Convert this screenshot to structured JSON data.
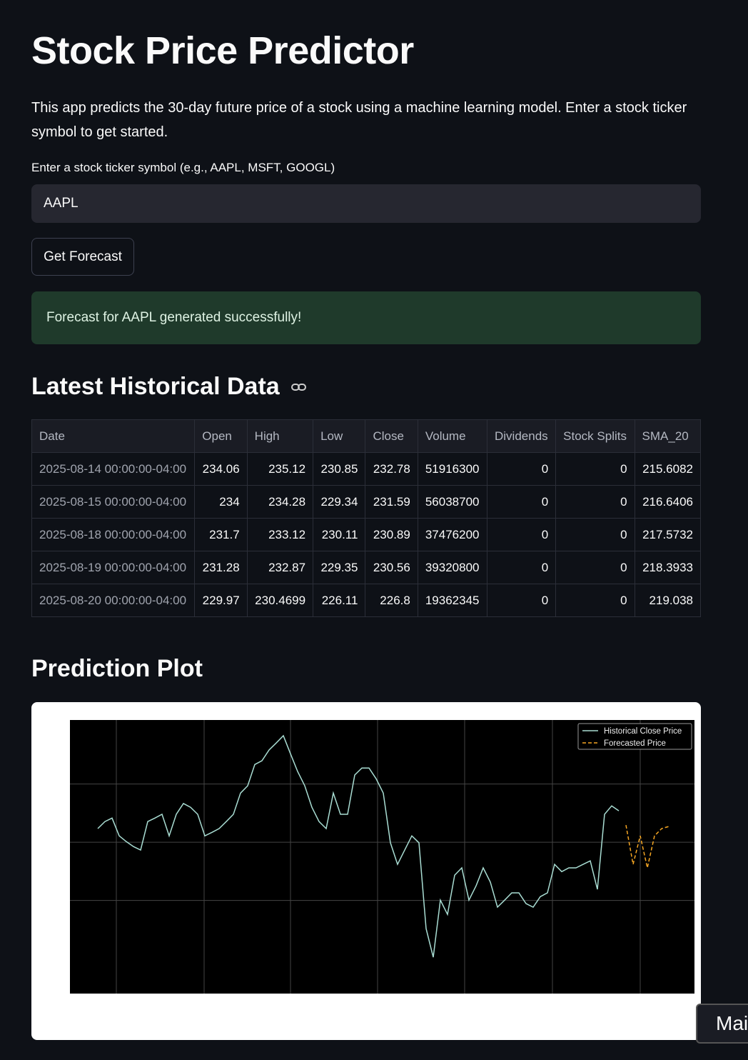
{
  "header": {
    "title": "Stock Price Predictor",
    "description": "This app predicts the 30-day future price of a stock using a machine learning model. Enter a stock ticker symbol to get started."
  },
  "input": {
    "label": "Enter a stock ticker symbol (e.g., AAPL, MSFT, GOOGL)",
    "value": "AAPL"
  },
  "button": {
    "label": "Get Forecast"
  },
  "alert": {
    "text": "Forecast for AAPL generated successfully!"
  },
  "table_section": {
    "title": "Latest Historical Data"
  },
  "table": {
    "columns": [
      "Date",
      "Open",
      "High",
      "Low",
      "Close",
      "Volume",
      "Dividends",
      "Stock Splits",
      "SMA_20"
    ],
    "rows": [
      [
        "2025-08-14 00:00:00-04:00",
        234.06,
        235.12,
        230.85,
        232.78,
        51916300,
        0,
        0,
        215.6082
      ],
      [
        "2025-08-15 00:00:00-04:00",
        234,
        234.28,
        229.34,
        231.59,
        56038700,
        0,
        0,
        216.6406
      ],
      [
        "2025-08-18 00:00:00-04:00",
        231.7,
        233.12,
        230.11,
        230.89,
        37476200,
        0,
        0,
        217.5732
      ],
      [
        "2025-08-19 00:00:00-04:00",
        231.28,
        232.87,
        229.35,
        230.56,
        39320800,
        0,
        0,
        218.3933
      ],
      [
        "2025-08-20 00:00:00-04:00",
        229.97,
        230.4699,
        226.11,
        226.8,
        19362345,
        0,
        0,
        219.038
      ]
    ]
  },
  "plot_section": {
    "title": "Prediction Plot"
  },
  "chart_data": {
    "type": "line",
    "ylim": [
      168,
      262
    ],
    "yticks": [
      200,
      220,
      240
    ],
    "grid": true,
    "legend": "upper right",
    "series": [
      {
        "name": "Historical Close Price",
        "color": "#a9ddd3",
        "dashed": false,
        "values": [
          224.7,
          227.1,
          228.3,
          222.2,
          220.2,
          218.5,
          217.3,
          227.1,
          228.3,
          229.6,
          222.2,
          229.6,
          233.3,
          232.0,
          229.6,
          222.2,
          223.4,
          224.7,
          227.1,
          229.6,
          236.9,
          239.4,
          246.7,
          248.0,
          251.7,
          254.1,
          256.6,
          250.4,
          244.3,
          239.4,
          232.0,
          227.1,
          224.7,
          236.9,
          229.6,
          229.6,
          243.1,
          245.5,
          245.5,
          241.8,
          236.9,
          219.8,
          212.4,
          217.3,
          222.2,
          219.8,
          190.3,
          180.5,
          200.1,
          195.2,
          208.7,
          211.2,
          200.1,
          205.0,
          211.2,
          206.3,
          197.7,
          200.1,
          202.6,
          202.6,
          198.9,
          197.7,
          201.3,
          202.6,
          212.4,
          209.9,
          211.2,
          211.2,
          212.4,
          213.6,
          203.8,
          229.6,
          232.5,
          230.8,
          null,
          null,
          null,
          null,
          null,
          null,
          null
        ]
      },
      {
        "name": "Forecasted Price",
        "color": "#f5a623",
        "dashed": true,
        "values": [
          null,
          null,
          null,
          null,
          null,
          null,
          null,
          null,
          null,
          null,
          null,
          null,
          null,
          null,
          null,
          null,
          null,
          null,
          null,
          null,
          null,
          null,
          null,
          null,
          null,
          null,
          null,
          null,
          null,
          null,
          null,
          null,
          null,
          null,
          null,
          null,
          null,
          null,
          null,
          null,
          null,
          null,
          null,
          null,
          null,
          null,
          null,
          null,
          null,
          null,
          null,
          null,
          null,
          null,
          null,
          null,
          null,
          null,
          null,
          null,
          null,
          null,
          null,
          null,
          null,
          null,
          null,
          null,
          null,
          null,
          null,
          null,
          null,
          null,
          225.9,
          212.4,
          222.2,
          211.2,
          222.2,
          224.7,
          225.4
        ]
      }
    ]
  },
  "tooltip": {
    "text": "Mai"
  }
}
